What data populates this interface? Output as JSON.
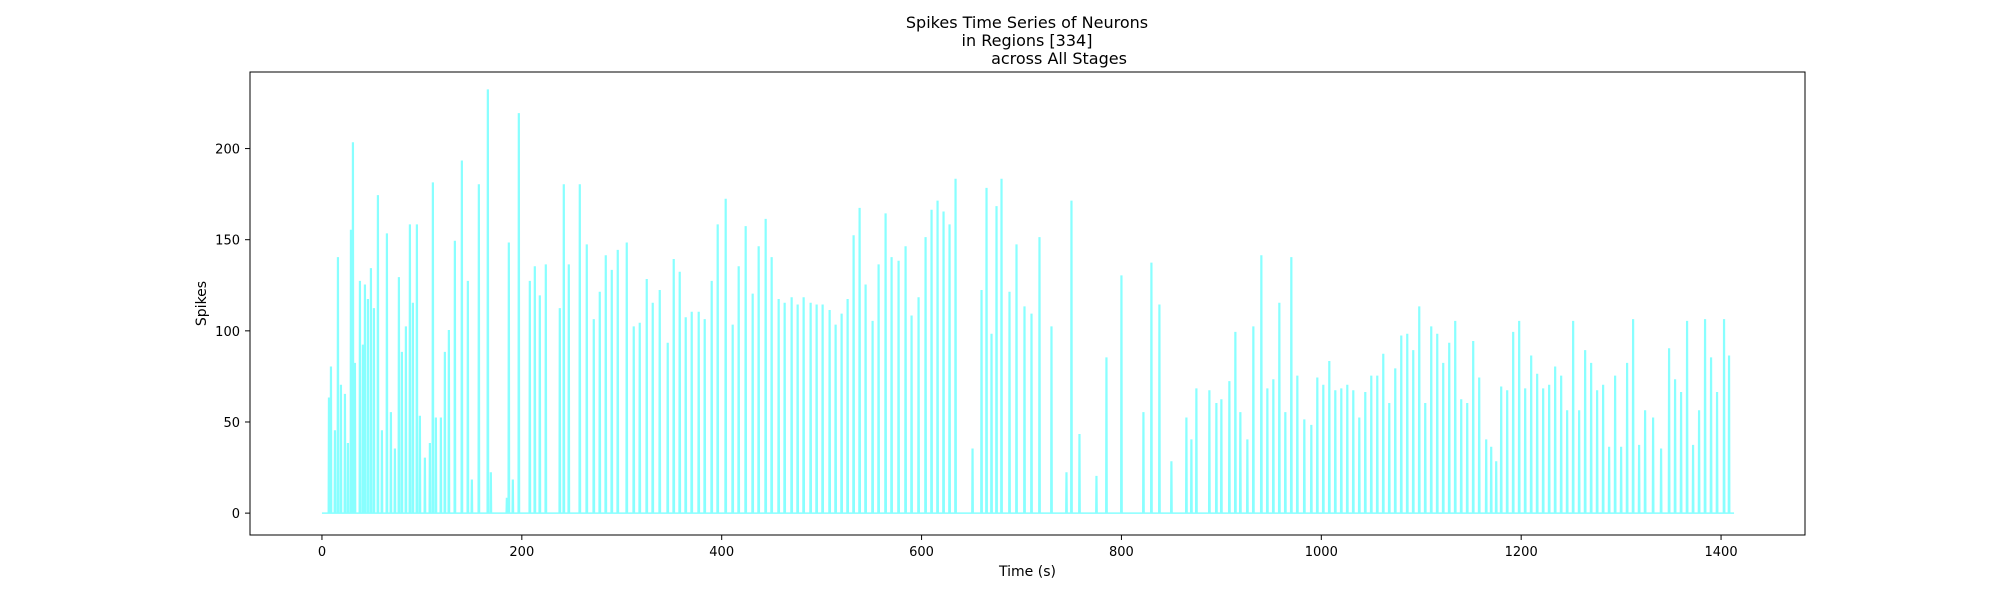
{
  "chart_data": {
    "type": "line",
    "title_lines": [
      "Spikes Time Series of Neurons",
      "in Regions [334]",
      "across All Stages"
    ],
    "xlabel": "Time (s)",
    "ylabel": "Spikes",
    "xlim": [
      -72,
      1484
    ],
    "ylim": [
      -12,
      242
    ],
    "xticks": [
      0,
      200,
      400,
      600,
      800,
      1000,
      1200,
      1400
    ],
    "yticks": [
      0,
      50,
      100,
      150,
      200
    ],
    "grid": false,
    "legend": "none",
    "series": [
      {
        "color": "#88ffff",
        "spikes": [
          [
            7,
            63
          ],
          [
            9,
            80
          ],
          [
            13,
            45
          ],
          [
            16,
            140
          ],
          [
            19,
            70
          ],
          [
            23,
            65
          ],
          [
            26,
            38
          ],
          [
            29,
            155
          ],
          [
            31,
            203
          ],
          [
            33,
            82
          ],
          [
            38,
            127
          ],
          [
            41,
            92
          ],
          [
            43,
            125
          ],
          [
            46,
            117
          ],
          [
            49,
            134
          ],
          [
            52,
            112
          ],
          [
            56,
            174
          ],
          [
            60,
            45
          ],
          [
            65,
            153
          ],
          [
            69,
            55
          ],
          [
            73,
            35
          ],
          [
            77,
            129
          ],
          [
            80,
            88
          ],
          [
            84,
            102
          ],
          [
            88,
            158
          ],
          [
            91,
            115
          ],
          [
            95,
            158
          ],
          [
            98,
            53
          ],
          [
            103,
            30
          ],
          [
            108,
            38
          ],
          [
            111,
            181
          ],
          [
            114,
            52
          ],
          [
            119,
            52
          ],
          [
            123,
            88
          ],
          [
            127,
            100
          ],
          [
            133,
            149
          ],
          [
            140,
            193
          ],
          [
            146,
            127
          ],
          [
            150,
            18
          ],
          [
            157,
            180
          ],
          [
            166,
            232
          ],
          [
            169,
            22
          ],
          [
            185,
            8
          ],
          [
            187,
            148
          ],
          [
            191,
            18
          ],
          [
            197,
            219
          ],
          [
            208,
            127
          ],
          [
            213,
            135
          ],
          [
            218,
            119
          ],
          [
            224,
            136
          ],
          [
            238,
            112
          ],
          [
            242,
            180
          ],
          [
            247,
            136
          ],
          [
            258,
            180
          ],
          [
            265,
            147
          ],
          [
            272,
            106
          ],
          [
            278,
            121
          ],
          [
            284,
            141
          ],
          [
            290,
            133
          ],
          [
            296,
            144
          ],
          [
            305,
            148
          ],
          [
            312,
            102
          ],
          [
            318,
            104
          ],
          [
            325,
            128
          ],
          [
            331,
            115
          ],
          [
            338,
            122
          ],
          [
            346,
            93
          ],
          [
            352,
            139
          ],
          [
            358,
            132
          ],
          [
            364,
            107
          ],
          [
            370,
            110
          ],
          [
            377,
            110
          ],
          [
            383,
            106
          ],
          [
            390,
            127
          ],
          [
            396,
            158
          ],
          [
            404,
            172
          ],
          [
            411,
            103
          ],
          [
            417,
            135
          ],
          [
            424,
            157
          ],
          [
            431,
            120
          ],
          [
            437,
            146
          ],
          [
            444,
            161
          ],
          [
            450,
            140
          ],
          [
            457,
            117
          ],
          [
            463,
            115
          ],
          [
            470,
            118
          ],
          [
            476,
            114
          ],
          [
            482,
            118
          ],
          [
            489,
            115
          ],
          [
            495,
            114
          ],
          [
            501,
            114
          ],
          [
            508,
            111
          ],
          [
            514,
            103
          ],
          [
            520,
            109
          ],
          [
            526,
            117
          ],
          [
            532,
            152
          ],
          [
            538,
            167
          ],
          [
            544,
            125
          ],
          [
            551,
            105
          ],
          [
            557,
            136
          ],
          [
            564,
            164
          ],
          [
            570,
            140
          ],
          [
            577,
            138
          ],
          [
            584,
            146
          ],
          [
            590,
            108
          ],
          [
            597,
            118
          ],
          [
            604,
            151
          ],
          [
            610,
            166
          ],
          [
            616,
            171
          ],
          [
            622,
            165
          ],
          [
            628,
            158
          ],
          [
            634,
            183
          ],
          [
            651,
            35
          ],
          [
            660,
            122
          ],
          [
            665,
            178
          ],
          [
            670,
            98
          ],
          [
            675,
            168
          ],
          [
            680,
            183
          ],
          [
            688,
            121
          ],
          [
            695,
            147
          ],
          [
            703,
            113
          ],
          [
            710,
            109
          ],
          [
            718,
            151
          ],
          [
            730,
            102
          ],
          [
            745,
            22
          ],
          [
            750,
            171
          ],
          [
            758,
            43
          ],
          [
            775,
            20
          ],
          [
            785,
            85
          ],
          [
            800,
            130
          ],
          [
            822,
            55
          ],
          [
            830,
            137
          ],
          [
            838,
            114
          ],
          [
            850,
            28
          ],
          [
            865,
            52
          ],
          [
            870,
            40
          ],
          [
            875,
            68
          ],
          [
            888,
            67
          ],
          [
            895,
            60
          ],
          [
            900,
            62
          ],
          [
            908,
            72
          ],
          [
            914,
            99
          ],
          [
            919,
            55
          ],
          [
            926,
            40
          ],
          [
            932,
            102
          ],
          [
            940,
            141
          ],
          [
            946,
            68
          ],
          [
            952,
            73
          ],
          [
            958,
            115
          ],
          [
            964,
            55
          ],
          [
            970,
            140
          ],
          [
            976,
            75
          ],
          [
            983,
            51
          ],
          [
            990,
            48
          ],
          [
            996,
            74
          ],
          [
            1002,
            70
          ],
          [
            1008,
            83
          ],
          [
            1014,
            67
          ],
          [
            1020,
            68
          ],
          [
            1026,
            70
          ],
          [
            1032,
            67
          ],
          [
            1038,
            52
          ],
          [
            1044,
            66
          ],
          [
            1050,
            75
          ],
          [
            1056,
            75
          ],
          [
            1062,
            87
          ],
          [
            1068,
            60
          ],
          [
            1074,
            79
          ],
          [
            1080,
            97
          ],
          [
            1086,
            98
          ],
          [
            1092,
            89
          ],
          [
            1098,
            113
          ],
          [
            1104,
            60
          ],
          [
            1110,
            102
          ],
          [
            1116,
            98
          ],
          [
            1122,
            82
          ],
          [
            1128,
            93
          ],
          [
            1134,
            105
          ],
          [
            1140,
            62
          ],
          [
            1146,
            60
          ],
          [
            1152,
            94
          ],
          [
            1158,
            74
          ],
          [
            1165,
            40
          ],
          [
            1170,
            36
          ],
          [
            1175,
            28
          ],
          [
            1180,
            69
          ],
          [
            1186,
            67
          ],
          [
            1192,
            99
          ],
          [
            1198,
            105
          ],
          [
            1204,
            68
          ],
          [
            1210,
            86
          ],
          [
            1216,
            76
          ],
          [
            1222,
            68
          ],
          [
            1228,
            70
          ],
          [
            1234,
            80
          ],
          [
            1240,
            75
          ],
          [
            1246,
            56
          ],
          [
            1252,
            105
          ],
          [
            1258,
            56
          ],
          [
            1264,
            89
          ],
          [
            1270,
            82
          ],
          [
            1276,
            67
          ],
          [
            1282,
            70
          ],
          [
            1288,
            36
          ],
          [
            1294,
            75
          ],
          [
            1300,
            36
          ],
          [
            1306,
            82
          ],
          [
            1312,
            106
          ],
          [
            1318,
            37
          ],
          [
            1324,
            56
          ],
          [
            1332,
            52
          ],
          [
            1340,
            35
          ],
          [
            1348,
            90
          ],
          [
            1354,
            73
          ],
          [
            1360,
            66
          ],
          [
            1366,
            105
          ],
          [
            1372,
            37
          ],
          [
            1378,
            56
          ],
          [
            1384,
            106
          ],
          [
            1390,
            85
          ],
          [
            1396,
            66
          ],
          [
            1403,
            106
          ],
          [
            1408,
            86
          ]
        ]
      }
    ]
  }
}
